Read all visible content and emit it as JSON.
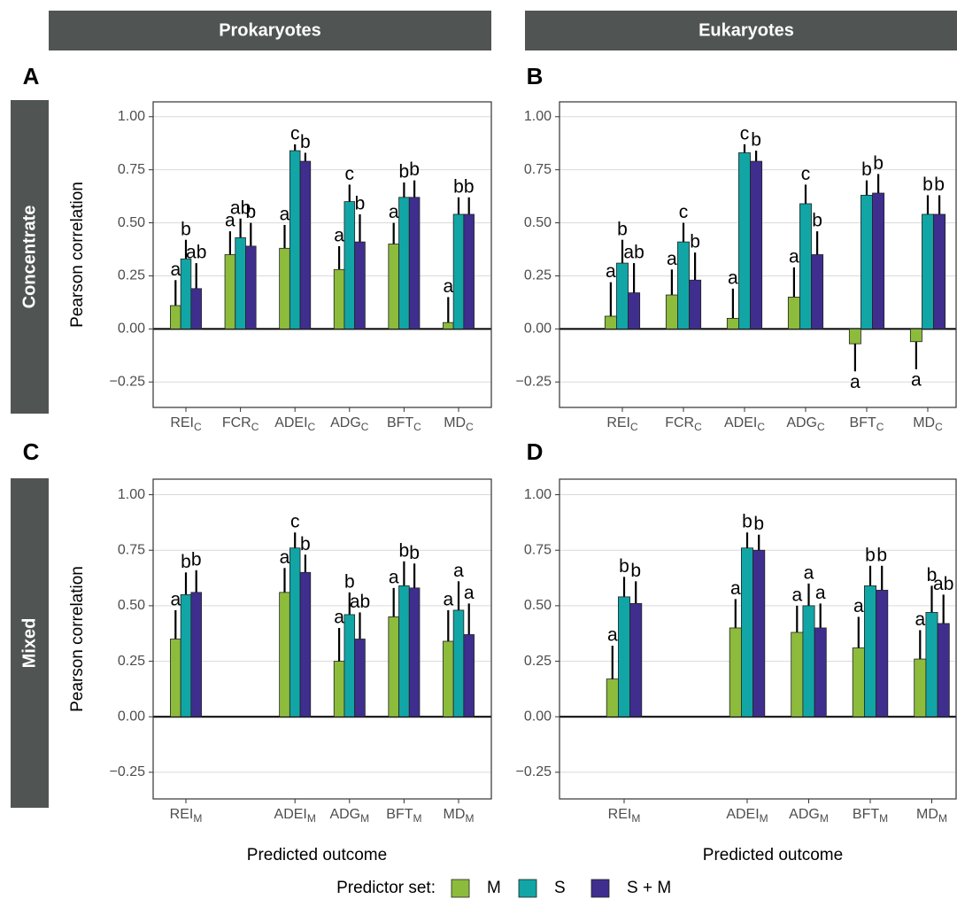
{
  "facets": {
    "columns": [
      "Prokaryotes",
      "Eukaryotes"
    ],
    "rows": [
      "Concentrate",
      "Mixed"
    ]
  },
  "x_label": "Predicted outcome",
  "legend": {
    "title": "Predictor set:"
  },
  "chart_data": [
    {
      "type": "bar",
      "panel": "A",
      "ylabel": "Pearson correlation",
      "grid": true,
      "categories": [
        "REI",
        "FCR",
        "ADEI",
        "ADG",
        "BFT",
        "MD"
      ],
      "category_subscript": "C",
      "ylim": [
        -0.37,
        1.07
      ],
      "yticks": [
        {
          "value": -0.25,
          "label": "−0.25"
        },
        {
          "value": 0,
          "label": "0.00"
        },
        0.25,
        {
          "value": 0.5,
          "label": "0.50"
        },
        0.75,
        {
          "value": 1,
          "label": "1.00"
        }
      ],
      "series": [
        {
          "name": "M",
          "color": "#8dbb3c",
          "values": [
            0.11,
            0.35,
            0.38,
            0.28,
            0.4,
            0.03
          ],
          "errors": [
            0.12,
            0.11,
            0.11,
            0.11,
            0.1,
            0.12
          ],
          "letters": [
            "a",
            "a",
            "a",
            "a",
            "a",
            "a"
          ]
        },
        {
          "name": "S",
          "color": "#12a5a5",
          "values": [
            0.33,
            0.43,
            0.84,
            0.6,
            0.62,
            0.54
          ],
          "errors": [
            0.09,
            0.09,
            0.03,
            0.08,
            0.07,
            0.08
          ],
          "letters": [
            "b",
            "ab",
            "c",
            "c",
            "b",
            "b"
          ]
        },
        {
          "name": "S + M",
          "color": "#3f2e8e",
          "values": [
            0.19,
            0.39,
            0.79,
            0.41,
            0.62,
            0.54
          ],
          "errors": [
            0.12,
            0.11,
            0.04,
            0.13,
            0.08,
            0.08
          ],
          "letters": [
            "ab",
            "b",
            "b",
            "b",
            "b",
            "b"
          ]
        }
      ]
    },
    {
      "type": "bar",
      "panel": "B",
      "grid": true,
      "categories": [
        "REI",
        "FCR",
        "ADEI",
        "ADG",
        "BFT",
        "MD"
      ],
      "category_subscript": "C",
      "ylim": [
        -0.37,
        1.07
      ],
      "yticks": [
        {
          "value": -0.25,
          "label": "−0.25"
        },
        {
          "value": 0,
          "label": "0.00"
        },
        0.25,
        {
          "value": 0.5,
          "label": "0.50"
        },
        0.75,
        {
          "value": 1,
          "label": "1.00"
        }
      ],
      "series": [
        {
          "name": "M",
          "color": "#8dbb3c",
          "values": [
            0.06,
            0.16,
            0.05,
            0.15,
            -0.07,
            -0.06
          ],
          "errors": [
            0.16,
            0.12,
            0.14,
            0.14,
            0.13,
            0.13
          ],
          "letters": [
            "a",
            "a",
            "a",
            "a",
            "a",
            "a"
          ]
        },
        {
          "name": "S",
          "color": "#12a5a5",
          "values": [
            0.31,
            0.41,
            0.83,
            0.59,
            0.63,
            0.54
          ],
          "errors": [
            0.11,
            0.09,
            0.04,
            0.09,
            0.07,
            0.09
          ],
          "letters": [
            "b",
            "c",
            "c",
            "c",
            "b",
            "b"
          ]
        },
        {
          "name": "S + M",
          "color": "#3f2e8e",
          "values": [
            0.17,
            0.23,
            0.79,
            0.35,
            0.64,
            0.54
          ],
          "errors": [
            0.14,
            0.13,
            0.05,
            0.11,
            0.09,
            0.09
          ],
          "letters": [
            "ab",
            "b",
            "b",
            "b",
            "b",
            "b"
          ]
        }
      ]
    },
    {
      "type": "bar",
      "panel": "C",
      "ylabel": "Pearson correlation",
      "grid": true,
      "categories": [
        "REI",
        null,
        "ADEI",
        "ADG",
        "BFT",
        "MD"
      ],
      "category_subscript": "M",
      "ylim": [
        -0.37,
        1.07
      ],
      "yticks": [
        {
          "value": -0.25,
          "label": "−0.25"
        },
        {
          "value": 0,
          "label": "0.00"
        },
        0.25,
        {
          "value": 0.5,
          "label": "0.50"
        },
        0.75,
        {
          "value": 1,
          "label": "1.00"
        }
      ],
      "series": [
        {
          "name": "M",
          "color": "#8dbb3c",
          "values": [
            0.35,
            null,
            0.56,
            0.25,
            0.45,
            0.34
          ],
          "errors": [
            0.13,
            null,
            0.11,
            0.15,
            0.13,
            0.14
          ],
          "letters": [
            "a",
            null,
            "a",
            "a",
            "a",
            "a"
          ]
        },
        {
          "name": "S",
          "color": "#12a5a5",
          "values": [
            0.55,
            null,
            0.76,
            0.46,
            0.59,
            0.48
          ],
          "errors": [
            0.1,
            null,
            0.07,
            0.1,
            0.11,
            0.13
          ],
          "letters": [
            "b",
            null,
            "c",
            "b",
            "b",
            "a"
          ]
        },
        {
          "name": "S + M",
          "color": "#3f2e8e",
          "values": [
            0.56,
            null,
            0.65,
            0.35,
            0.58,
            0.37
          ],
          "errors": [
            0.1,
            null,
            0.08,
            0.12,
            0.11,
            0.14
          ],
          "letters": [
            "b",
            null,
            "b",
            "ab",
            "b",
            "a"
          ]
        }
      ]
    },
    {
      "type": "bar",
      "panel": "D",
      "grid": true,
      "categories": [
        "REI",
        null,
        "ADEI",
        "ADG",
        "BFT",
        "MD"
      ],
      "category_subscript": "M",
      "ylim": [
        -0.37,
        1.07
      ],
      "yticks": [
        {
          "value": -0.25,
          "label": "−0.25"
        },
        {
          "value": 0,
          "label": "0.00"
        },
        0.25,
        {
          "value": 0.5,
          "label": "0.50"
        },
        0.75,
        {
          "value": 1,
          "label": "1.00"
        }
      ],
      "series": [
        {
          "name": "M",
          "color": "#8dbb3c",
          "values": [
            0.17,
            null,
            0.4,
            0.38,
            0.31,
            0.26
          ],
          "errors": [
            0.15,
            null,
            0.13,
            0.12,
            0.14,
            0.13
          ],
          "letters": [
            "a",
            null,
            "a",
            "a",
            "a",
            "a"
          ]
        },
        {
          "name": "S",
          "color": "#12a5a5",
          "values": [
            0.54,
            null,
            0.76,
            0.5,
            0.59,
            0.47
          ],
          "errors": [
            0.09,
            null,
            0.07,
            0.1,
            0.09,
            0.12
          ],
          "letters": [
            "b",
            null,
            "b",
            "a",
            "b",
            "b"
          ]
        },
        {
          "name": "S + M",
          "color": "#3f2e8e",
          "values": [
            0.51,
            null,
            0.75,
            0.4,
            0.57,
            0.42
          ],
          "errors": [
            0.1,
            null,
            0.07,
            0.11,
            0.11,
            0.13
          ],
          "letters": [
            "b",
            null,
            "b",
            "a",
            "b",
            "ab"
          ]
        }
      ]
    }
  ]
}
